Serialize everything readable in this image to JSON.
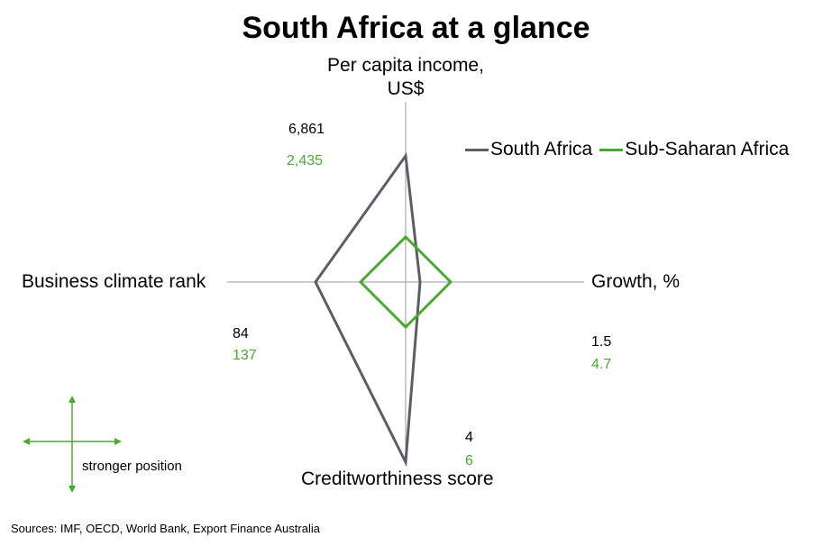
{
  "chart_data": {
    "type": "radar",
    "title": "South Africa at a glance",
    "axes": [
      {
        "key": "top",
        "label": "Per capita income, US$"
      },
      {
        "key": "right",
        "label": "Growth, %"
      },
      {
        "key": "bottom",
        "label": "Creditworthiness score"
      },
      {
        "key": "left",
        "label": "Business climate rank"
      }
    ],
    "series": [
      {
        "name": "South Africa",
        "color": "#5a5f66",
        "labels": {
          "top": "6,861",
          "right": "1.5",
          "bottom": "4",
          "left": "84"
        },
        "extent": {
          "top": 0.7,
          "right": 0.08,
          "bottom": 1.0,
          "left": 0.5
        }
      },
      {
        "name": "Sub-Saharan Africa",
        "color": "#4aa832",
        "labels": {
          "top": "2,435",
          "right": "4.7",
          "bottom": "6",
          "left": "137"
        },
        "extent": {
          "top": 0.25,
          "right": 0.25,
          "bottom": 0.25,
          "left": 0.25
        }
      }
    ],
    "legend_position": "top-right"
  },
  "key_label": "stronger position",
  "source": "Sources: IMF, OECD, World Bank, Export Finance Australia"
}
